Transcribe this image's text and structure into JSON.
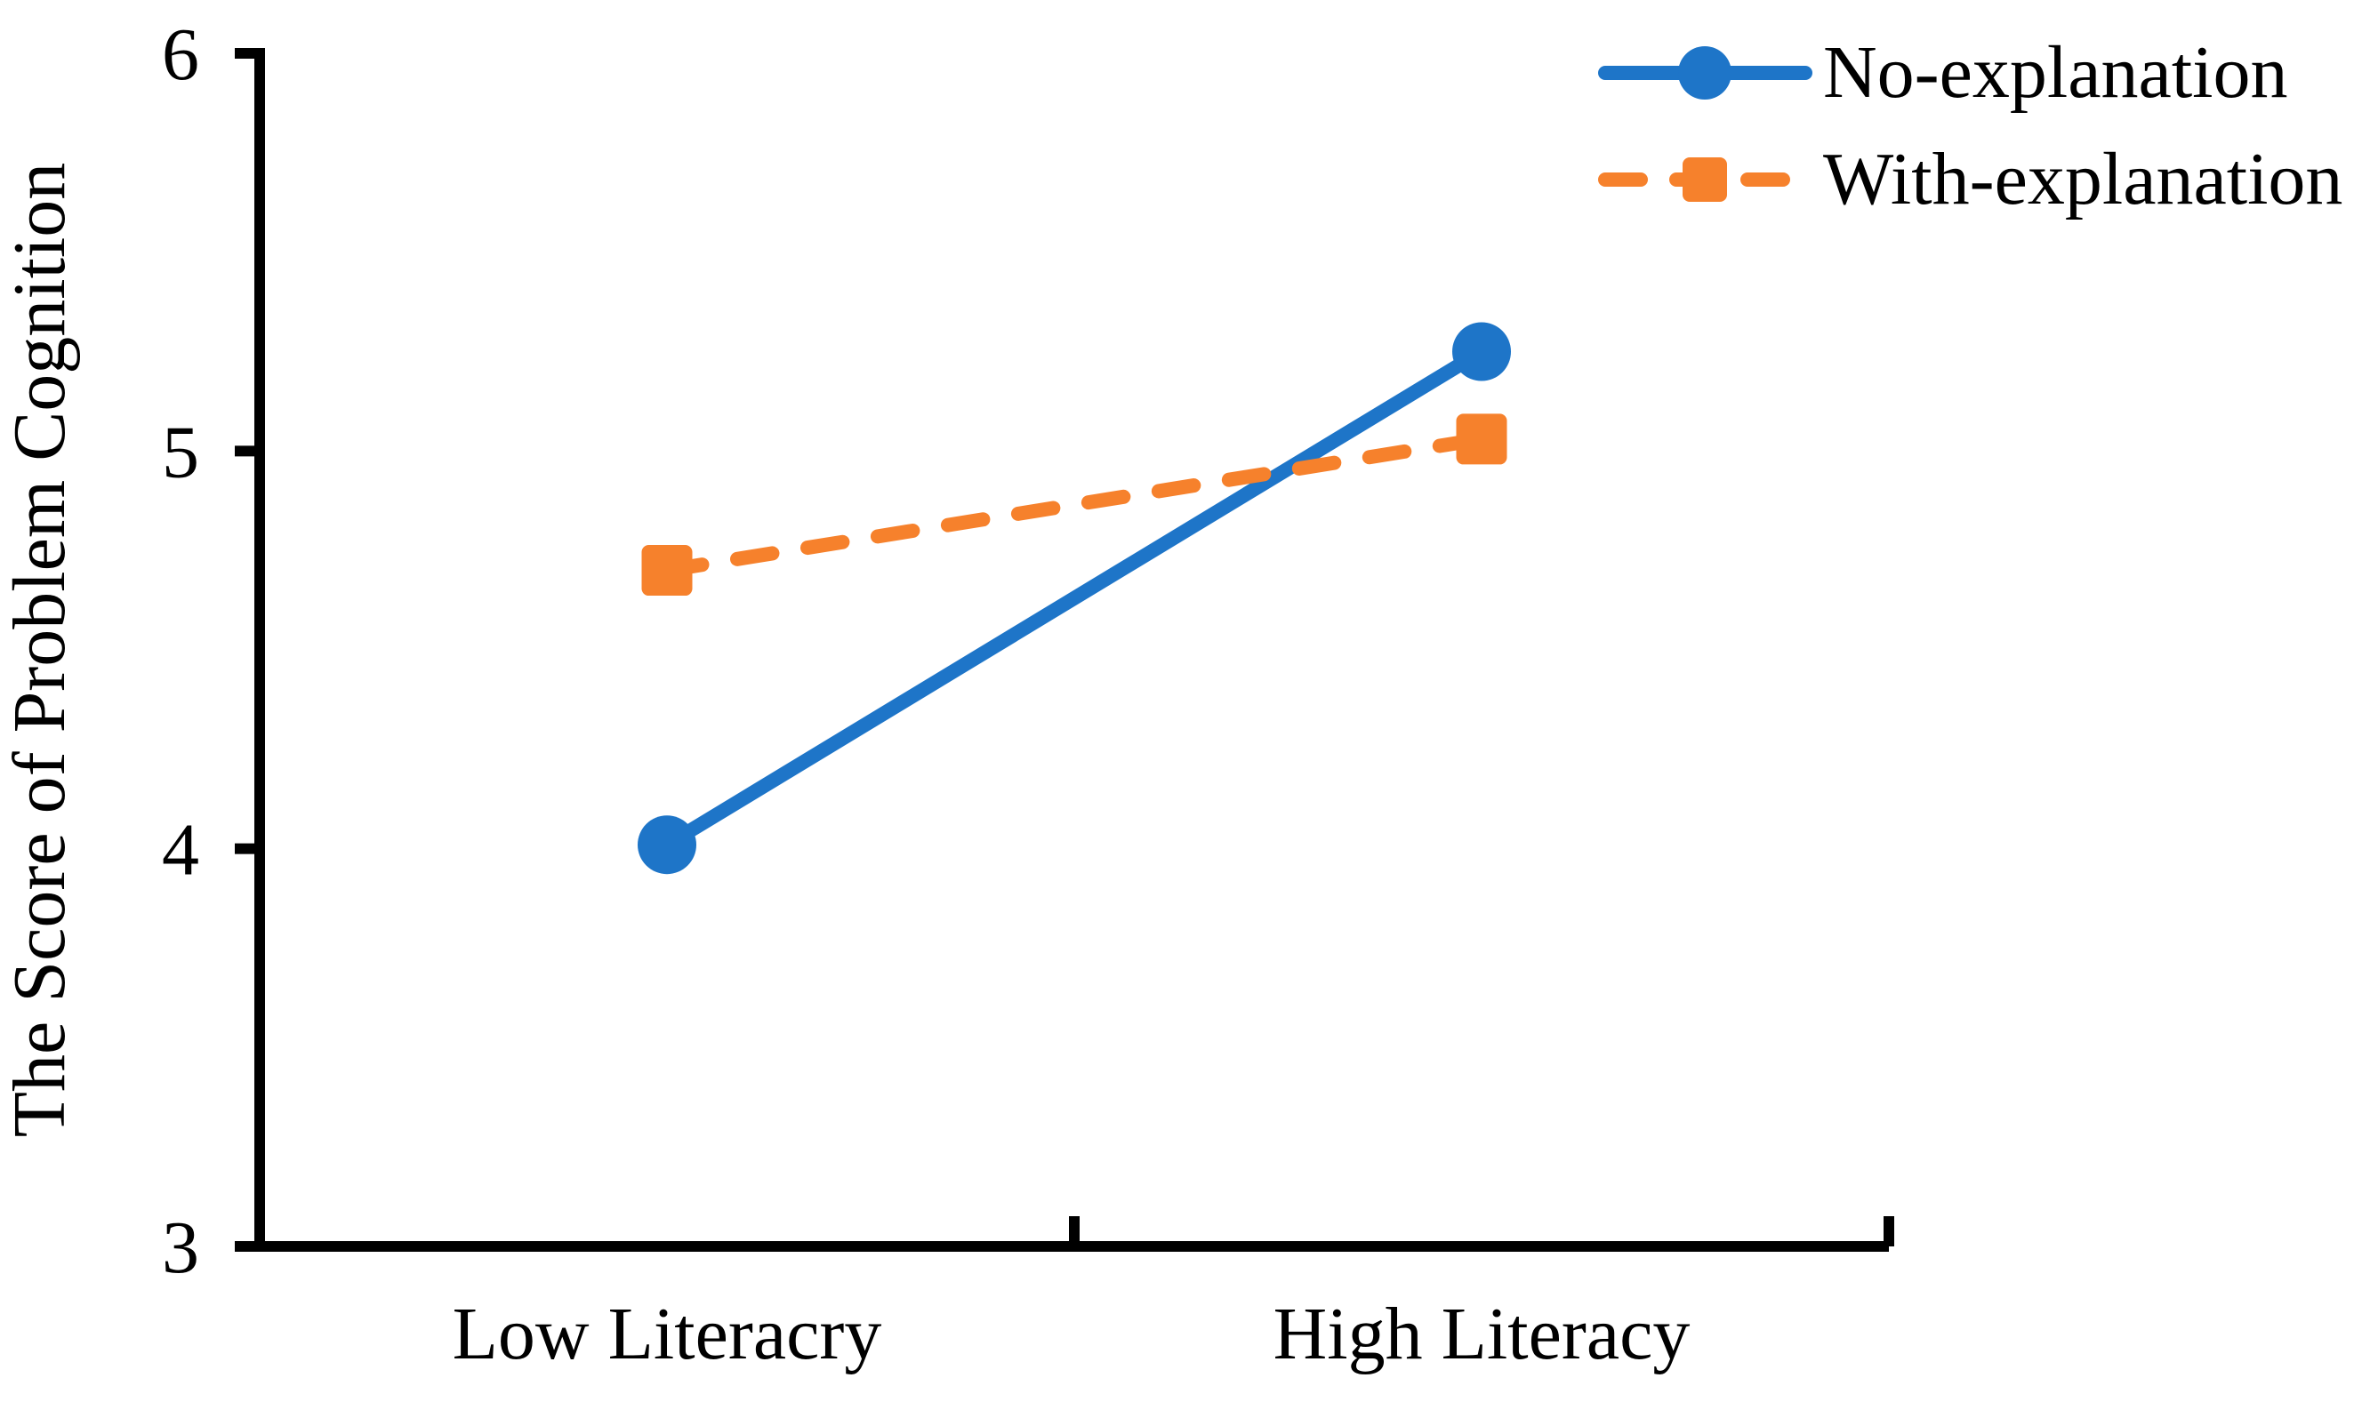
{
  "chart_data": {
    "type": "line",
    "title": "",
    "xlabel": "",
    "ylabel": "The Score of Problem Cognition",
    "categories": [
      "Low Literacry",
      "High Literacy"
    ],
    "series": [
      {
        "name": "No-explanation",
        "values": [
          4.01,
          5.25
        ],
        "color": "#1E75C8",
        "line_style": "solid",
        "marker": "circle"
      },
      {
        "name": "With-explanation",
        "values": [
          4.7,
          5.03
        ],
        "color": "#F6812C",
        "line_style": "dashed",
        "marker": "square"
      }
    ],
    "ylim": [
      3,
      6
    ],
    "yticks": [
      6,
      5,
      4,
      3
    ],
    "grid": false,
    "legend_position": "top-right",
    "axis_color": "#000000",
    "background_color": "#ffffff",
    "text_color": "#000000"
  }
}
